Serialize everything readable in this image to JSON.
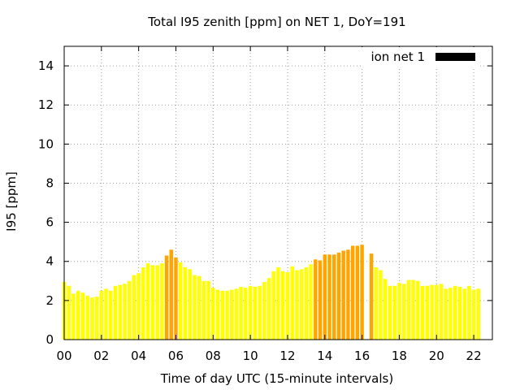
{
  "chart_data": {
    "type": "bar",
    "title": "Total I95 zenith [ppm] on NET 1, DoY=191",
    "xlabel": "Time of day UTC (15-minute intervals)",
    "ylabel": "I95 [ppm]",
    "x_unit_hours": true,
    "xlim": [
      0,
      23
    ],
    "ylim": [
      0,
      15
    ],
    "xticks": [
      0,
      2,
      4,
      6,
      8,
      10,
      12,
      14,
      16,
      18,
      20,
      22
    ],
    "xtick_labels": [
      "00",
      "02",
      "04",
      "06",
      "08",
      "10",
      "12",
      "14",
      "16",
      "18",
      "20",
      "22"
    ],
    "yticks": [
      0,
      2,
      4,
      6,
      8,
      10,
      12,
      14
    ],
    "ytick_labels": [
      "0",
      "2",
      "4",
      "6",
      "8",
      "10",
      "12",
      "14"
    ],
    "grid": true,
    "legend": {
      "label": "ion net 1",
      "color": "#000000",
      "placement": "top-right"
    },
    "colors": {
      "low": "#ffff00",
      "mid": "#ffff22",
      "high": "#ffa500"
    },
    "series": [
      {
        "values": [
          2.95,
          2.75,
          2.35,
          2.5,
          2.4,
          2.25,
          2.15,
          2.2,
          2.5,
          2.6,
          2.5,
          2.75,
          2.8,
          2.85,
          3.0,
          3.3,
          3.4,
          3.7,
          3.9,
          3.8,
          3.8,
          3.9,
          4.3,
          4.6,
          4.2,
          3.95,
          3.7,
          3.6,
          3.3,
          3.25,
          3.0,
          3.0,
          2.65,
          2.55,
          2.5,
          2.5,
          2.55,
          2.6,
          2.7,
          2.65,
          2.75,
          2.7,
          2.75,
          2.95,
          3.15,
          3.5,
          3.7,
          3.5,
          3.45,
          3.75,
          3.55,
          3.6,
          3.7,
          3.85,
          4.1,
          4.05,
          4.35,
          4.35,
          4.35,
          4.45,
          4.55,
          4.6,
          4.8,
          4.8,
          4.85,
          null,
          4.4,
          3.7,
          3.55,
          3.1,
          2.75,
          2.75,
          2.9,
          2.85,
          3.05,
          3.05,
          3.0,
          2.75,
          2.75,
          2.8,
          2.8,
          2.85,
          2.6,
          2.65,
          2.75,
          2.7,
          2.6,
          2.75,
          2.55,
          2.6
        ],
        "colors": [
          "#ffff00",
          "#ffff00",
          "#ffff00",
          "#ffff00",
          "#ffff00",
          "#ffff00",
          "#ffff00",
          "#ffff00",
          "#ffff00",
          "#ffff00",
          "#ffff00",
          "#ffff00",
          "#ffff00",
          "#ffff00",
          "#ffff00",
          "#ffff00",
          "#ffff00",
          "#ffff00",
          "#ffff00",
          "#ffff00",
          "#ffff00",
          "#ffff00",
          "#ffa500",
          "#ffa500",
          "#ffa500",
          "#ffff00",
          "#ffff00",
          "#ffff00",
          "#ffff00",
          "#ffff00",
          "#ffff00",
          "#ffff00",
          "#ffff00",
          "#ffff00",
          "#ffff00",
          "#ffff00",
          "#ffff00",
          "#ffff00",
          "#ffff00",
          "#ffff00",
          "#ffff00",
          "#ffff00",
          "#ffff00",
          "#ffff00",
          "#ffff00",
          "#ffff00",
          "#ffff00",
          "#ffff00",
          "#ffff00",
          "#ffff00",
          "#ffff00",
          "#ffff00",
          "#ffff00",
          "#ffff00",
          "#ffa500",
          "#ffa500",
          "#ffa500",
          "#ffa500",
          "#ffa500",
          "#ffa500",
          "#ffa500",
          "#ffa500",
          "#ffa500",
          "#ffa500",
          "#ffa500",
          null,
          "#ffa500",
          "#ffff00",
          "#ffff00",
          "#ffff00",
          "#ffff00",
          "#ffff00",
          "#ffff00",
          "#ffff00",
          "#ffff00",
          "#ffff00",
          "#ffff00",
          "#ffff00",
          "#ffff00",
          "#ffff00",
          "#ffff00",
          "#ffff00",
          "#ffff00",
          "#ffff00",
          "#ffff00",
          "#ffff00",
          "#ffff00",
          "#ffff00",
          "#ffff00",
          "#ffff00"
        ]
      }
    ]
  }
}
